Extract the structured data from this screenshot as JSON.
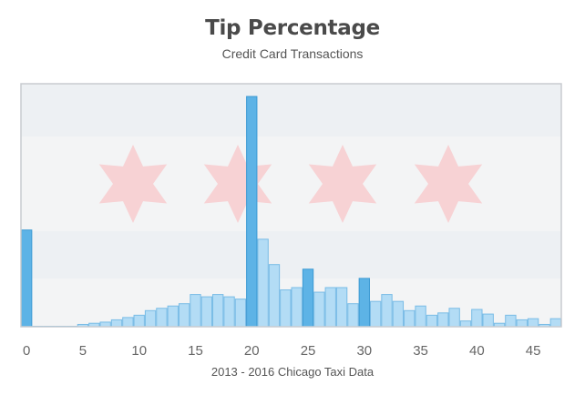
{
  "chart_data": {
    "type": "bar",
    "title": "Tip Percentage",
    "subtitle": "Credit Card Transactions",
    "xlabel": "2013 - 2016 Chicago Taxi Data",
    "ylabel": "",
    "x_ticks": [
      "0",
      "5",
      "10",
      "15",
      "20",
      "25",
      "30",
      "35",
      "40",
      "45"
    ],
    "x_tick_values": [
      0,
      5,
      10,
      15,
      20,
      25,
      30,
      35,
      40,
      45
    ],
    "xlim": [
      -0.5,
      47.5
    ],
    "ylim": [
      0,
      100
    ],
    "bins": [
      0,
      1,
      2,
      3,
      4,
      5,
      6,
      7,
      8,
      9,
      10,
      11,
      12,
      13,
      14,
      15,
      16,
      17,
      18,
      19,
      20,
      21,
      22,
      23,
      24,
      25,
      26,
      27,
      28,
      29,
      30,
      31,
      32,
      33,
      34,
      35,
      36,
      37,
      38,
      39,
      40,
      41,
      42,
      43,
      44,
      45,
      46,
      47
    ],
    "values": [
      42,
      0,
      0,
      0,
      0,
      1,
      1.5,
      2,
      3,
      4,
      5,
      7,
      8,
      9,
      10,
      14,
      13,
      14,
      13,
      12,
      100,
      38,
      27,
      16,
      17,
      25,
      15,
      17,
      17,
      10,
      21,
      11,
      14,
      11,
      7,
      9,
      5,
      6,
      8,
      2.5,
      7.5,
      5.5,
      1.5,
      5,
      3,
      3.5,
      1,
      3.5
    ],
    "highlighted_bins": [
      0,
      20,
      25,
      30
    ],
    "colors": {
      "bar": "#b3dcf5",
      "bar_edge": "#79bce6",
      "highlight": "#5db3e6",
      "highlight_edge": "#3d9ad3",
      "band": "#edf0f3",
      "plot_bg": "#f3f4f5",
      "star": "#f7d2d4",
      "frame": "#c8ccd0",
      "tick_text": "#666666"
    }
  }
}
